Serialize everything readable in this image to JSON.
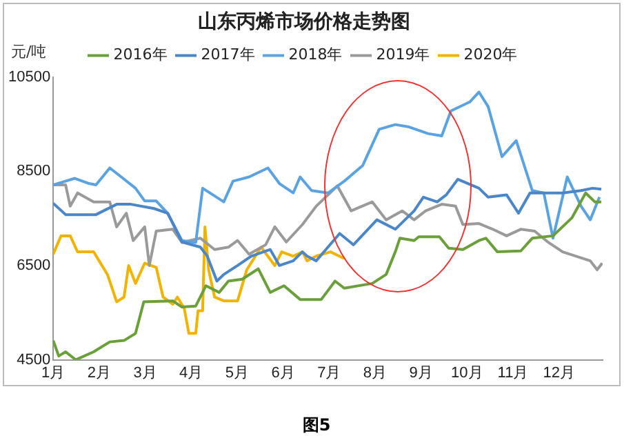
{
  "chart_data": {
    "type": "line",
    "title": "山东丙烯市场价格走势图",
    "ylabel": "元/吨",
    "annotations": [
      "图5"
    ],
    "legend": "top",
    "grid": false,
    "marker": "none",
    "line_style": "solid",
    "xlim": [
      1,
      12.95
    ],
    "xticks": [
      {
        "value": 1,
        "label": "1月"
      },
      {
        "value": 2,
        "label": "2月"
      },
      {
        "value": 3,
        "label": "3月"
      },
      {
        "value": 4,
        "label": "4月"
      },
      {
        "value": 5,
        "label": "5月"
      },
      {
        "value": 6,
        "label": "6月"
      },
      {
        "value": 7,
        "label": "7月"
      },
      {
        "value": 8,
        "label": "8月"
      },
      {
        "value": 9,
        "label": "9月"
      },
      {
        "value": 10,
        "label": "10月"
      },
      {
        "value": 11,
        "label": "11月"
      },
      {
        "value": 12,
        "label": "12月"
      }
    ],
    "ylim": [
      4500,
      10500
    ],
    "yticks": [
      4500,
      6500,
      8500,
      10500
    ],
    "series": [
      {
        "name": "2016年",
        "color": "#6a9f3a",
        "x": [
          1.0,
          1.12,
          1.27,
          1.49,
          1.88,
          2.23,
          2.54,
          2.79,
          2.97,
          3.6,
          3.8,
          4.1,
          4.32,
          4.61,
          4.81,
          5.11,
          5.46,
          5.72,
          6.02,
          6.37,
          6.83,
          7.13,
          7.33,
          7.94,
          8.24,
          8.44,
          8.54,
          8.85,
          8.95,
          9.4,
          9.6,
          9.91,
          10.26,
          10.41,
          10.66,
          11.17,
          11.42,
          11.87,
          12.28,
          12.58,
          12.78,
          12.92
        ],
        "values": [
          4910,
          4580,
          4670,
          4500,
          4670,
          4880,
          4910,
          5060,
          5730,
          5750,
          5620,
          5640,
          6070,
          5930,
          6170,
          6210,
          6430,
          5930,
          6070,
          5780,
          5780,
          6170,
          6020,
          6120,
          6310,
          6790,
          7080,
          7030,
          7110,
          7110,
          6870,
          6840,
          7030,
          7080,
          6790,
          6810,
          7080,
          7130,
          7510,
          8040,
          7850,
          7850
        ]
      },
      {
        "name": "2017年",
        "color": "#4a86c8",
        "x": [
          1.0,
          1.27,
          1.93,
          2.38,
          2.69,
          3.19,
          3.49,
          3.8,
          4.2,
          4.35,
          4.56,
          4.71,
          5.01,
          5.31,
          5.72,
          5.92,
          6.22,
          6.42,
          6.52,
          6.72,
          6.93,
          7.23,
          7.53,
          8.04,
          8.44,
          8.85,
          9.05,
          9.35,
          9.55,
          9.8,
          10.26,
          10.46,
          10.86,
          11.12,
          11.37,
          11.77,
          12.08,
          12.48,
          12.73,
          12.92
        ],
        "values": [
          7820,
          7580,
          7580,
          7800,
          7800,
          7710,
          7610,
          7000,
          6890,
          6700,
          6170,
          6310,
          6500,
          6700,
          6840,
          6500,
          6600,
          6790,
          6700,
          6600,
          6840,
          7180,
          6940,
          7470,
          7270,
          7660,
          7950,
          7850,
          8000,
          8330,
          8140,
          7950,
          8000,
          7610,
          8040,
          8040,
          8040,
          8090,
          8140,
          8120
        ]
      },
      {
        "name": "2018年",
        "color": "#5ba3e0",
        "x": [
          1.0,
          1.17,
          1.47,
          1.78,
          1.93,
          2.23,
          2.48,
          2.79,
          2.99,
          3.24,
          3.49,
          3.8,
          4.1,
          4.25,
          4.71,
          4.91,
          5.26,
          5.67,
          5.92,
          6.22,
          6.37,
          6.62,
          6.98,
          7.33,
          7.73,
          8.09,
          8.44,
          8.74,
          9.15,
          9.45,
          9.65,
          10.06,
          10.26,
          10.46,
          10.76,
          11.07,
          11.42,
          11.67,
          11.87,
          12.18,
          12.48,
          12.68,
          12.88
        ],
        "values": [
          8210,
          8260,
          8350,
          8240,
          8210,
          8570,
          8380,
          8140,
          7870,
          7870,
          7610,
          7030,
          6990,
          8140,
          7850,
          8290,
          8380,
          8570,
          8240,
          8040,
          8380,
          8090,
          8040,
          8290,
          8620,
          9390,
          9490,
          9440,
          9300,
          9250,
          9780,
          9970,
          10180,
          9870,
          8810,
          9150,
          8090,
          8040,
          7080,
          8380,
          7760,
          7470,
          7950
        ]
      },
      {
        "name": "2019年",
        "color": "#9a9a9a",
        "x": [
          1.0,
          1.27,
          1.37,
          1.53,
          1.88,
          2.23,
          2.38,
          2.59,
          2.74,
          2.99,
          3.09,
          3.24,
          3.6,
          3.8,
          4.2,
          4.51,
          4.81,
          5.01,
          5.26,
          5.62,
          5.82,
          6.07,
          6.42,
          6.72,
          7.18,
          7.48,
          7.94,
          8.24,
          8.59,
          8.85,
          9.1,
          9.45,
          9.75,
          9.91,
          10.26,
          10.56,
          10.86,
          11.17,
          11.47,
          11.77,
          12.08,
          12.68,
          12.83,
          12.94
        ],
        "values": [
          8210,
          8210,
          7760,
          8040,
          7850,
          7850,
          7320,
          7610,
          7030,
          7320,
          6500,
          7230,
          7270,
          6990,
          7080,
          6840,
          6890,
          7030,
          6740,
          6940,
          7320,
          7000,
          7370,
          7760,
          8190,
          7660,
          7850,
          7470,
          7660,
          7470,
          7660,
          7800,
          7760,
          7370,
          7390,
          7270,
          7130,
          7270,
          7230,
          6990,
          6790,
          6600,
          6410,
          6550
        ]
      },
      {
        "name": "2020年",
        "color": "#f0b400",
        "x": [
          1.0,
          1.17,
          1.37,
          1.53,
          1.88,
          2.18,
          2.38,
          2.54,
          2.64,
          2.79,
          2.99,
          3.24,
          3.39,
          3.6,
          3.7,
          3.85,
          3.95,
          4.1,
          4.15,
          4.25,
          4.3,
          4.38,
          4.51,
          4.71,
          5.01,
          5.21,
          5.52,
          5.82,
          5.97,
          6.22,
          6.42,
          6.52,
          6.72,
          7.03,
          7.33
        ],
        "values": [
          6740,
          7130,
          7130,
          6790,
          6790,
          6310,
          5730,
          5830,
          6500,
          6120,
          6550,
          6460,
          5830,
          5680,
          5830,
          5590,
          5060,
          5060,
          5540,
          5540,
          7320,
          6410,
          5830,
          5750,
          5750,
          6410,
          6890,
          6500,
          6790,
          6700,
          6790,
          6600,
          6700,
          6790,
          6650
        ]
      }
    ]
  }
}
